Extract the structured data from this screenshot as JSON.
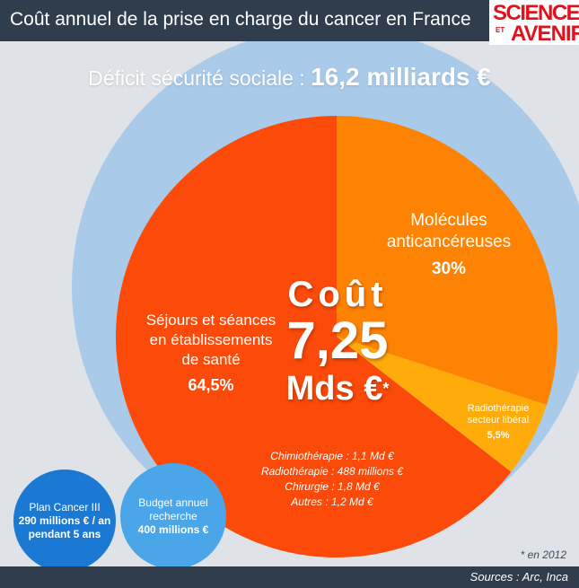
{
  "header": {
    "title": "Coût annuel de la prise en charge du cancer en France"
  },
  "logo": {
    "line1": "SCIENCES",
    "et": "ET",
    "line2": "AVENIR"
  },
  "deficit": {
    "label": "Déficit sécurité sociale : ",
    "value": "16,2 milliards €"
  },
  "total": {
    "word": "Coût",
    "amount": "7,25",
    "unit": "Mds €",
    "footnote_mark": "*"
  },
  "segments": {
    "sejours": {
      "lines": [
        "Séjours et séances",
        "en établissements",
        "de santé"
      ],
      "pct": "64,5%"
    },
    "molecules": {
      "lines": [
        "Molécules",
        "anticancéreuses"
      ],
      "pct": "30%"
    },
    "radio": {
      "lines": [
        "Radiothérapie",
        "secteur libéral"
      ],
      "pct": "5,5%"
    }
  },
  "breakdown": [
    "Chimiothérapie : 1,1 Md €",
    "Radiothérapie : 488 millions €",
    "Chirurgie : 1,8 Md €",
    "Autres : 1,2 Md €"
  ],
  "bubbles": {
    "plan": {
      "title": "Plan Cancer III",
      "value1": "290 millions € / an",
      "value2": "pendant 5 ans"
    },
    "budget": {
      "title1": "Budget annuel",
      "title2": "recherche",
      "value": "400 millions €"
    }
  },
  "note": "* en 2012",
  "sources": "Sources : Arc, Inca",
  "colors": {
    "header_bg": "#2f3d4d",
    "deficit_circle": "#a9cbe9",
    "sejours": "#fb4a09",
    "molecules": "#ff8303",
    "radio": "#ffac0a",
    "plan_bubble": "#1b79d3",
    "budget_bubble": "#4aa6e8",
    "logo_red": "#e3111b"
  },
  "chart_data": {
    "type": "pie",
    "title": "Coût annuel de la prise en charge du cancer en France",
    "total": "7,25 Mds €",
    "categories": [
      "Séjours et séances en établissements de santé",
      "Molécules anticancéreuses",
      "Radiothérapie secteur libéral"
    ],
    "values": [
      64.5,
      30,
      5.5
    ],
    "unit": "%"
  }
}
